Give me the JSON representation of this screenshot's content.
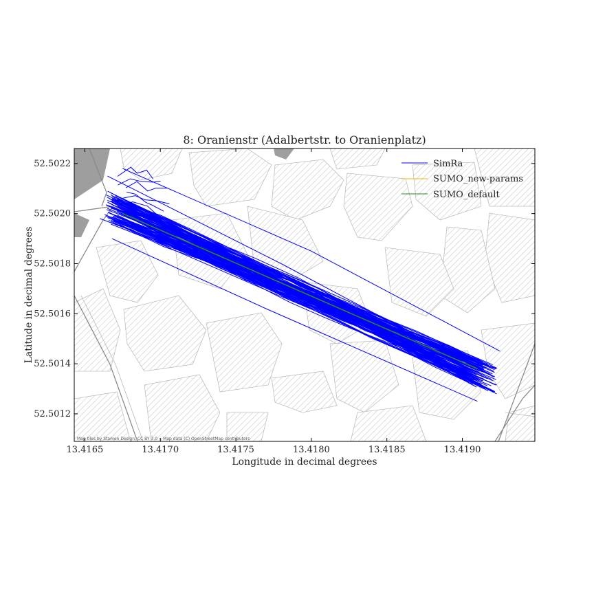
{
  "colors": {
    "simra": "#0000ff",
    "sumo_new_params": "#f0b400",
    "sumo_default": "#228b22",
    "building_hatch": "#c8c8c8",
    "road": "#8a8a8a"
  },
  "map_attribution": "Map tiles by Stamen Design, CC BY 3.0 -- Map data (C) OpenStreetMap contributors",
  "chart_data": {
    "type": "line",
    "title": "8: Oranienstr (Adalbertstr. to Oranienplatz)",
    "xlabel": "Longitude in decimal degrees",
    "ylabel": "Latitude in decimal degrees",
    "xlim": [
      13.41643,
      13.41948
    ],
    "ylim": [
      52.50109,
      52.50226
    ],
    "x_ticks": [
      "13.4165",
      "13.4170",
      "13.4175",
      "13.4180",
      "13.4185",
      "13.4190"
    ],
    "y_ticks": [
      "52.5012",
      "52.5014",
      "52.5016",
      "52.5018",
      "52.5020",
      "52.5022"
    ],
    "grid": false,
    "legend_position": "top-right",
    "series": [
      {
        "name": "SimRa",
        "style": "many thin trajectories (~100 bicycle tracks)",
        "representative_tracks": [
          [
            [
              13.41665,
              52.50215
            ],
            [
              13.4178,
              52.5018
            ],
            [
              13.4192,
              52.50135
            ]
          ],
          [
            [
              13.4167,
              52.50205
            ],
            [
              13.4179,
              52.5017
            ],
            [
              13.41915,
              52.5013
            ]
          ],
          [
            [
              13.4166,
              52.50198
            ],
            [
              13.4176,
              52.50175
            ],
            [
              13.41905,
              52.5014
            ]
          ],
          [
            [
              13.41675,
              52.50218
            ],
            [
              13.418,
              52.50185
            ],
            [
              13.41925,
              52.50145
            ]
          ],
          [
            [
              13.41668,
              52.5019
            ],
            [
              13.4177,
              52.50162
            ],
            [
              13.4191,
              52.50125
            ]
          ]
        ]
      },
      {
        "name": "SUMO_new-params",
        "style": "single line (hidden beneath SUMO_default)",
        "points": [
          [
            13.41675,
            52.502
          ],
          [
            13.4191,
            52.50138
          ]
        ]
      },
      {
        "name": "SUMO_default",
        "style": "single line",
        "points": [
          [
            13.41675,
            52.502
          ],
          [
            13.4191,
            52.50138
          ]
        ]
      }
    ]
  }
}
